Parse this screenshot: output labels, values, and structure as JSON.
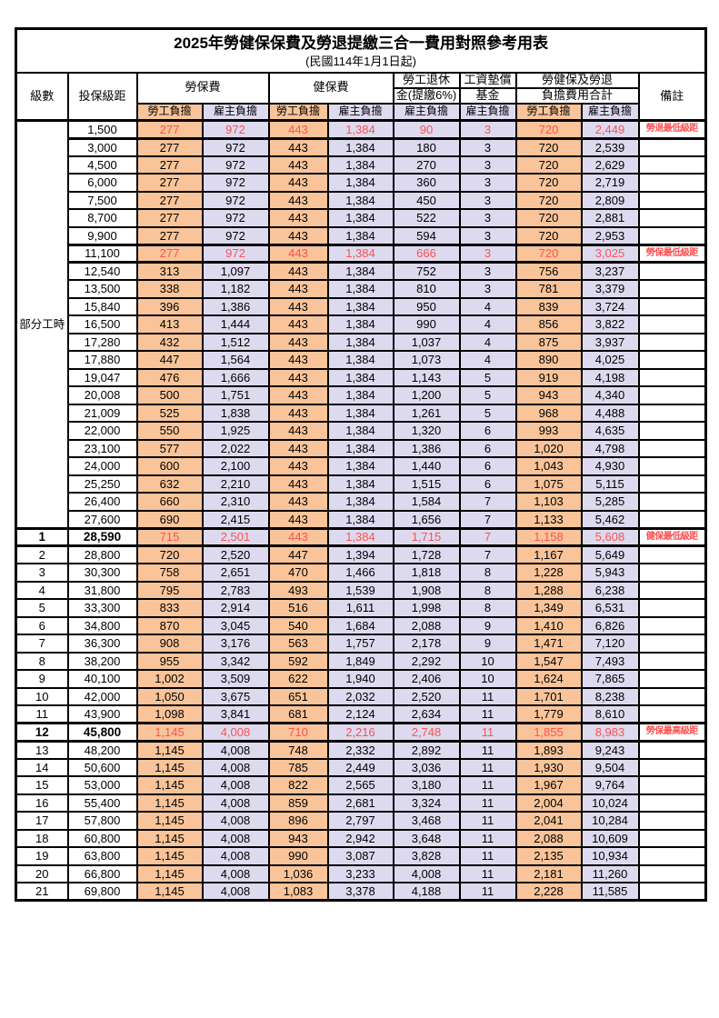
{
  "page": {
    "title": "2025年勞健保保費及勞退提繳三合一費用對照參考用表",
    "subtitle": "(民國114年1月1日起)"
  },
  "colors": {
    "employee_bg": "#F9C499",
    "employer_bg": "#DDDAEF",
    "highlight_text": "#FF5050"
  },
  "header": {
    "level": "級數",
    "salary_bracket": "投保級距",
    "labor_insurance": "勞保費",
    "health_insurance": "健保費",
    "pension_top": "勞工退休",
    "pension_bottom": "金(提繳6%)",
    "wage_arrears_top": "工資墊償",
    "wage_arrears_bottom": "基金",
    "total_top": "勞健保及勞退",
    "total_bottom": "負擔費用合計",
    "remark": "備註",
    "employee_share": "勞工負擔",
    "employer_share": "雇主負擔"
  },
  "part_time_label": "部分工時",
  "rows": [
    {
      "pt": true,
      "br": "1,500",
      "v": [
        "277",
        "972",
        "443",
        "1,384",
        "90",
        "3",
        "720",
        "2,449"
      ],
      "rm": "勞退最低級距",
      "hl": true
    },
    {
      "pt": true,
      "br": "3,000",
      "v": [
        "277",
        "972",
        "443",
        "1,384",
        "180",
        "3",
        "720",
        "2,539"
      ]
    },
    {
      "pt": true,
      "br": "4,500",
      "v": [
        "277",
        "972",
        "443",
        "1,384",
        "270",
        "3",
        "720",
        "2,629"
      ]
    },
    {
      "pt": true,
      "br": "6,000",
      "v": [
        "277",
        "972",
        "443",
        "1,384",
        "360",
        "3",
        "720",
        "2,719"
      ]
    },
    {
      "pt": true,
      "br": "7,500",
      "v": [
        "277",
        "972",
        "443",
        "1,384",
        "450",
        "3",
        "720",
        "2,809"
      ]
    },
    {
      "pt": true,
      "br": "8,700",
      "v": [
        "277",
        "972",
        "443",
        "1,384",
        "522",
        "3",
        "720",
        "2,881"
      ]
    },
    {
      "pt": true,
      "br": "9,900",
      "v": [
        "277",
        "972",
        "443",
        "1,384",
        "594",
        "3",
        "720",
        "2,953"
      ]
    },
    {
      "pt": true,
      "br": "11,100",
      "v": [
        "277",
        "972",
        "443",
        "1,384",
        "666",
        "3",
        "720",
        "3,025"
      ],
      "rm": "勞保最低級距",
      "hl": true
    },
    {
      "pt": true,
      "br": "12,540",
      "v": [
        "313",
        "1,097",
        "443",
        "1,384",
        "752",
        "3",
        "756",
        "3,237"
      ]
    },
    {
      "pt": true,
      "br": "13,500",
      "v": [
        "338",
        "1,182",
        "443",
        "1,384",
        "810",
        "3",
        "781",
        "3,379"
      ]
    },
    {
      "pt": true,
      "br": "15,840",
      "v": [
        "396",
        "1,386",
        "443",
        "1,384",
        "950",
        "4",
        "839",
        "3,724"
      ]
    },
    {
      "pt": true,
      "br": "16,500",
      "v": [
        "413",
        "1,444",
        "443",
        "1,384",
        "990",
        "4",
        "856",
        "3,822"
      ]
    },
    {
      "pt": true,
      "br": "17,280",
      "v": [
        "432",
        "1,512",
        "443",
        "1,384",
        "1,037",
        "4",
        "875",
        "3,937"
      ]
    },
    {
      "pt": true,
      "br": "17,880",
      "v": [
        "447",
        "1,564",
        "443",
        "1,384",
        "1,073",
        "4",
        "890",
        "4,025"
      ]
    },
    {
      "pt": true,
      "br": "19,047",
      "v": [
        "476",
        "1,666",
        "443",
        "1,384",
        "1,143",
        "5",
        "919",
        "4,198"
      ]
    },
    {
      "pt": true,
      "br": "20,008",
      "v": [
        "500",
        "1,751",
        "443",
        "1,384",
        "1,200",
        "5",
        "943",
        "4,340"
      ]
    },
    {
      "pt": true,
      "br": "21,009",
      "v": [
        "525",
        "1,838",
        "443",
        "1,384",
        "1,261",
        "5",
        "968",
        "4,488"
      ]
    },
    {
      "pt": true,
      "br": "22,000",
      "v": [
        "550",
        "1,925",
        "443",
        "1,384",
        "1,320",
        "6",
        "993",
        "4,635"
      ]
    },
    {
      "pt": true,
      "br": "23,100",
      "v": [
        "577",
        "2,022",
        "443",
        "1,384",
        "1,386",
        "6",
        "1,020",
        "4,798"
      ]
    },
    {
      "pt": true,
      "br": "24,000",
      "v": [
        "600",
        "2,100",
        "443",
        "1,384",
        "1,440",
        "6",
        "1,043",
        "4,930"
      ]
    },
    {
      "pt": true,
      "br": "25,250",
      "v": [
        "632",
        "2,210",
        "443",
        "1,384",
        "1,515",
        "6",
        "1,075",
        "5,115"
      ]
    },
    {
      "pt": true,
      "br": "26,400",
      "v": [
        "660",
        "2,310",
        "443",
        "1,384",
        "1,584",
        "7",
        "1,103",
        "5,285"
      ]
    },
    {
      "pt": true,
      "br": "27,600",
      "v": [
        "690",
        "2,415",
        "443",
        "1,384",
        "1,656",
        "7",
        "1,133",
        "5,462"
      ]
    },
    {
      "lv": "1",
      "br": "28,590",
      "v": [
        "715",
        "2,501",
        "443",
        "1,384",
        "1,715",
        "7",
        "1,158",
        "5,608"
      ],
      "rm": "健保最低級距",
      "hl": true,
      "bold": true
    },
    {
      "lv": "2",
      "br": "28,800",
      "v": [
        "720",
        "2,520",
        "447",
        "1,394",
        "1,728",
        "7",
        "1,167",
        "5,649"
      ]
    },
    {
      "lv": "3",
      "br": "30,300",
      "v": [
        "758",
        "2,651",
        "470",
        "1,466",
        "1,818",
        "8",
        "1,228",
        "5,943"
      ]
    },
    {
      "lv": "4",
      "br": "31,800",
      "v": [
        "795",
        "2,783",
        "493",
        "1,539",
        "1,908",
        "8",
        "1,288",
        "6,238"
      ]
    },
    {
      "lv": "5",
      "br": "33,300",
      "v": [
        "833",
        "2,914",
        "516",
        "1,611",
        "1,998",
        "8",
        "1,349",
        "6,531"
      ]
    },
    {
      "lv": "6",
      "br": "34,800",
      "v": [
        "870",
        "3,045",
        "540",
        "1,684",
        "2,088",
        "9",
        "1,410",
        "6,826"
      ]
    },
    {
      "lv": "7",
      "br": "36,300",
      "v": [
        "908",
        "3,176",
        "563",
        "1,757",
        "2,178",
        "9",
        "1,471",
        "7,120"
      ]
    },
    {
      "lv": "8",
      "br": "38,200",
      "v": [
        "955",
        "3,342",
        "592",
        "1,849",
        "2,292",
        "10",
        "1,547",
        "7,493"
      ]
    },
    {
      "lv": "9",
      "br": "40,100",
      "v": [
        "1,002",
        "3,509",
        "622",
        "1,940",
        "2,406",
        "10",
        "1,624",
        "7,865"
      ]
    },
    {
      "lv": "10",
      "br": "42,000",
      "v": [
        "1,050",
        "3,675",
        "651",
        "2,032",
        "2,520",
        "11",
        "1,701",
        "8,238"
      ]
    },
    {
      "lv": "11",
      "br": "43,900",
      "v": [
        "1,098",
        "3,841",
        "681",
        "2,124",
        "2,634",
        "11",
        "1,779",
        "8,610"
      ]
    },
    {
      "lv": "12",
      "br": "45,800",
      "v": [
        "1,145",
        "4,008",
        "710",
        "2,216",
        "2,748",
        "11",
        "1,855",
        "8,983"
      ],
      "rm": "勞保最高級距",
      "hl": true,
      "bold": true
    },
    {
      "lv": "13",
      "br": "48,200",
      "v": [
        "1,145",
        "4,008",
        "748",
        "2,332",
        "2,892",
        "11",
        "1,893",
        "9,243"
      ]
    },
    {
      "lv": "14",
      "br": "50,600",
      "v": [
        "1,145",
        "4,008",
        "785",
        "2,449",
        "3,036",
        "11",
        "1,930",
        "9,504"
      ]
    },
    {
      "lv": "15",
      "br": "53,000",
      "v": [
        "1,145",
        "4,008",
        "822",
        "2,565",
        "3,180",
        "11",
        "1,967",
        "9,764"
      ]
    },
    {
      "lv": "16",
      "br": "55,400",
      "v": [
        "1,145",
        "4,008",
        "859",
        "2,681",
        "3,324",
        "11",
        "2,004",
        "10,024"
      ]
    },
    {
      "lv": "17",
      "br": "57,800",
      "v": [
        "1,145",
        "4,008",
        "896",
        "2,797",
        "3,468",
        "11",
        "2,041",
        "10,284"
      ]
    },
    {
      "lv": "18",
      "br": "60,800",
      "v": [
        "1,145",
        "4,008",
        "943",
        "2,942",
        "3,648",
        "11",
        "2,088",
        "10,609"
      ]
    },
    {
      "lv": "19",
      "br": "63,800",
      "v": [
        "1,145",
        "4,008",
        "990",
        "3,087",
        "3,828",
        "11",
        "2,135",
        "10,934"
      ]
    },
    {
      "lv": "20",
      "br": "66,800",
      "v": [
        "1,145",
        "4,008",
        "1,036",
        "3,233",
        "4,008",
        "11",
        "2,181",
        "11,260"
      ]
    },
    {
      "lv": "21",
      "br": "69,800",
      "v": [
        "1,145",
        "4,008",
        "1,083",
        "3,378",
        "4,188",
        "11",
        "2,228",
        "11,585"
      ]
    }
  ]
}
